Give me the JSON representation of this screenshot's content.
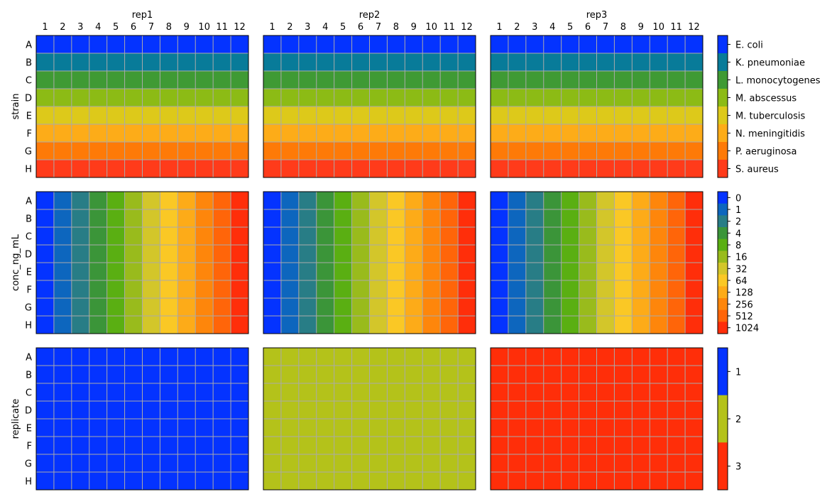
{
  "chart_data": {
    "type": "heatmap",
    "plate": {
      "columns": [
        "1",
        "2",
        "3",
        "4",
        "5",
        "6",
        "7",
        "8",
        "9",
        "10",
        "11",
        "12"
      ],
      "rows": [
        "A",
        "B",
        "C",
        "D",
        "E",
        "F",
        "G",
        "H"
      ]
    },
    "plates": [
      "rep1",
      "rep2",
      "rep3"
    ],
    "grid": true,
    "panels": [
      {
        "ylabel": "strain",
        "orientation": "by-row",
        "legend": [
          {
            "label": "E. coli",
            "color": "#0433ff"
          },
          {
            "label": "K. pneumoniae",
            "color": "#087b99"
          },
          {
            "label": "L. monocytogenes",
            "color": "#3f9a34"
          },
          {
            "label": "M. abscessus",
            "color": "#8cbb15"
          },
          {
            "label": "M. tuberculosis",
            "color": "#ddc91a"
          },
          {
            "label": "N. meningitidis",
            "color": "#fdac18"
          },
          {
            "label": "P. aeruginosa",
            "color": "#fe7a07"
          },
          {
            "label": "S. aureus",
            "color": "#ff3b1a"
          }
        ],
        "values": [
          [
            "E. coli",
            "K. pneumoniae",
            "L. monocytogenes",
            "M. abscessus",
            "M. tuberculosis",
            "N. meningitidis",
            "P. aeruginosa",
            "S. aureus"
          ],
          [
            "E. coli",
            "K. pneumoniae",
            "L. monocytogenes",
            "M. abscessus",
            "M. tuberculosis",
            "N. meningitidis",
            "P. aeruginosa",
            "S. aureus"
          ],
          [
            "E. coli",
            "K. pneumoniae",
            "L. monocytogenes",
            "M. abscessus",
            "M. tuberculosis",
            "N. meningitidis",
            "P. aeruginosa",
            "S. aureus"
          ]
        ]
      },
      {
        "ylabel": "conc_ng_mL",
        "orientation": "by-column",
        "legend": [
          {
            "label": "0",
            "color": "#0433ff"
          },
          {
            "label": "1",
            "color": "#0d66be"
          },
          {
            "label": "2",
            "color": "#287d86"
          },
          {
            "label": "4",
            "color": "#3b9539"
          },
          {
            "label": "8",
            "color": "#5aaf12"
          },
          {
            "label": "16",
            "color": "#99bb1c"
          },
          {
            "label": "32",
            "color": "#d3c62a"
          },
          {
            "label": "64",
            "color": "#fac825"
          },
          {
            "label": "128",
            "color": "#fdab18"
          },
          {
            "label": "256",
            "color": "#fe860b"
          },
          {
            "label": "512",
            "color": "#ff6509"
          },
          {
            "label": "1024",
            "color": "#ff2e0a"
          }
        ],
        "values": [
          [
            "0",
            "1",
            "2",
            "4",
            "8",
            "16",
            "32",
            "64",
            "128",
            "256",
            "512",
            "1024"
          ],
          [
            "0",
            "1",
            "2",
            "4",
            "8",
            "16",
            "32",
            "64",
            "128",
            "256",
            "512",
            "1024"
          ],
          [
            "0",
            "1",
            "2",
            "4",
            "8",
            "16",
            "32",
            "64",
            "128",
            "256",
            "512",
            "1024"
          ]
        ]
      },
      {
        "ylabel": "replicate",
        "orientation": "whole-plate",
        "legend": [
          {
            "label": "1",
            "color": "#0433ff"
          },
          {
            "label": "2",
            "color": "#b4c21a"
          },
          {
            "label": "3",
            "color": "#ff2e09"
          }
        ],
        "values": [
          "1",
          "2",
          "3"
        ]
      }
    ],
    "grid_color": "#aaaaaa"
  }
}
